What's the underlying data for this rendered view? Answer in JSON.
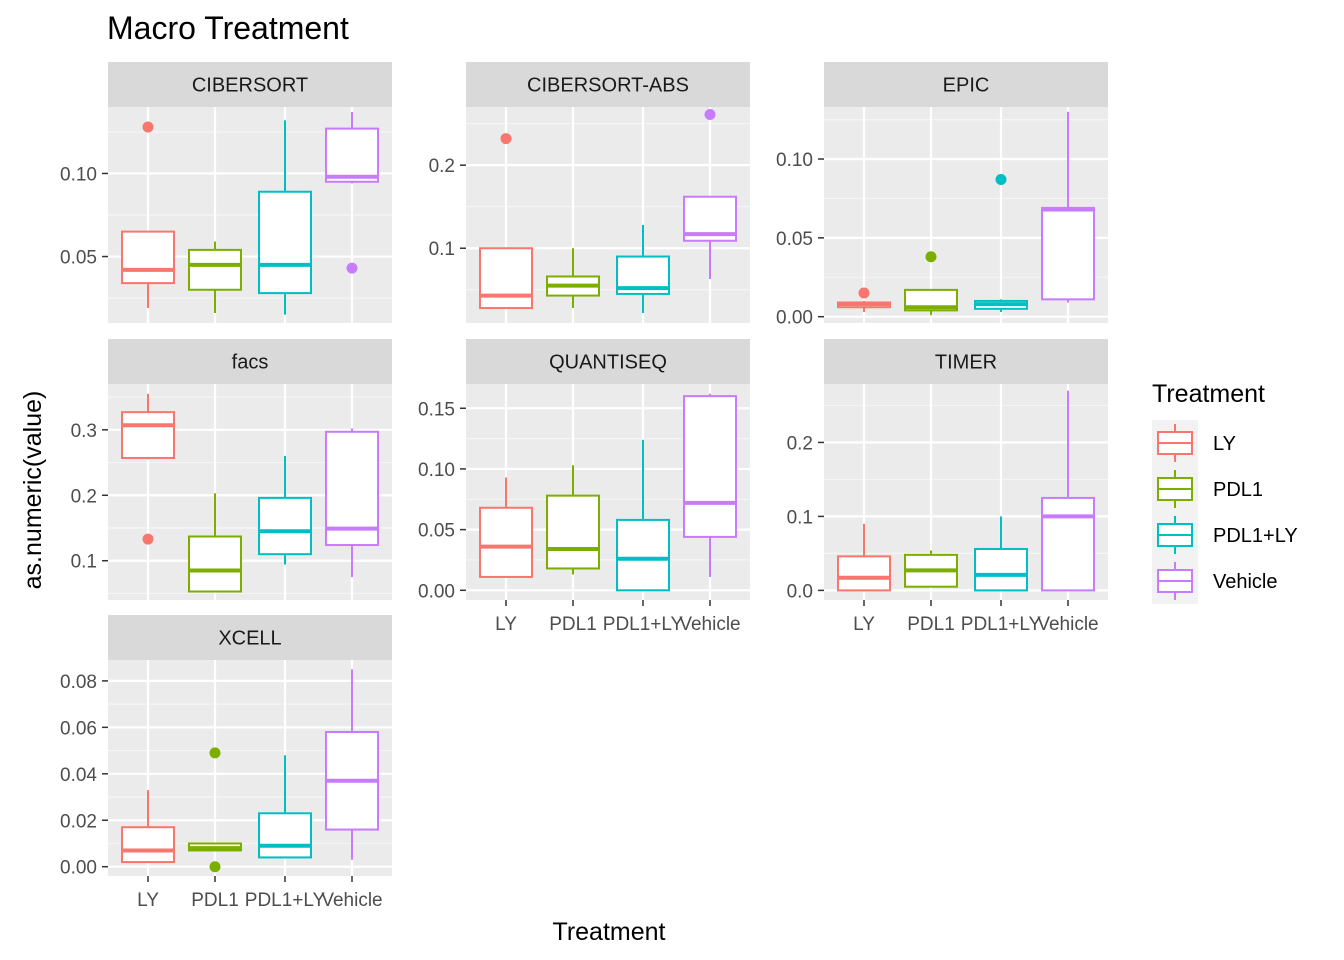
{
  "title": "Macro Treatment",
  "xlabel": "Treatment",
  "ylabel": "as.numeric(value)",
  "legend": {
    "title": "Treatment",
    "placement": "right",
    "items": [
      {
        "label": "LY",
        "color": "#F8766D"
      },
      {
        "label": "PDL1",
        "color": "#7CAE00"
      },
      {
        "label": "PDL1+LY",
        "color": "#00BFC4"
      },
      {
        "label": "Vehicle",
        "color": "#C77CFF"
      }
    ]
  },
  "chart_data": [
    {
      "type": "boxplot",
      "panel": "CIBERSORT",
      "categories": [
        "LY",
        "PDL1",
        "PDL1+LY",
        "Vehicle"
      ],
      "ylim": [
        0.01,
        0.14
      ],
      "yticks": [
        0.05,
        0.1
      ],
      "ytick_labels": [
        "0.05",
        "0.10"
      ],
      "boxes": [
        {
          "min": 0.019,
          "q1": 0.034,
          "median": 0.042,
          "q3": 0.065,
          "max": 0.065,
          "outliers": [
            0.128
          ]
        },
        {
          "min": 0.016,
          "q1": 0.03,
          "median": 0.045,
          "q3": 0.054,
          "max": 0.059,
          "outliers": []
        },
        {
          "min": 0.015,
          "q1": 0.028,
          "median": 0.045,
          "q3": 0.089,
          "max": 0.132,
          "outliers": []
        },
        {
          "min": 0.094,
          "q1": 0.095,
          "median": 0.098,
          "q3": 0.127,
          "max": 0.137,
          "outliers": [
            0.043
          ]
        }
      ]
    },
    {
      "type": "boxplot",
      "panel": "CIBERSORT-ABS",
      "categories": [
        "LY",
        "PDL1",
        "PDL1+LY",
        "Vehicle"
      ],
      "ylim": [
        0.01,
        0.27
      ],
      "yticks": [
        0.1,
        0.2
      ],
      "ytick_labels": [
        "0.1",
        "0.2"
      ],
      "boxes": [
        {
          "min": 0.028,
          "q1": 0.028,
          "median": 0.043,
          "q3": 0.1,
          "max": 0.1,
          "outliers": [
            0.232
          ]
        },
        {
          "min": 0.028,
          "q1": 0.043,
          "median": 0.055,
          "q3": 0.066,
          "max": 0.1,
          "outliers": []
        },
        {
          "min": 0.022,
          "q1": 0.045,
          "median": 0.052,
          "q3": 0.09,
          "max": 0.128,
          "outliers": []
        },
        {
          "min": 0.063,
          "q1": 0.109,
          "median": 0.117,
          "q3": 0.162,
          "max": 0.162,
          "outliers": [
            0.261
          ]
        }
      ]
    },
    {
      "type": "boxplot",
      "panel": "EPIC",
      "categories": [
        "LY",
        "PDL1",
        "PDL1+LY",
        "Vehicle"
      ],
      "ylim": [
        -0.004,
        0.133
      ],
      "yticks": [
        0.0,
        0.05,
        0.1
      ],
      "ytick_labels": [
        "0.00",
        "0.05",
        "0.10"
      ],
      "boxes": [
        {
          "min": 0.003,
          "q1": 0.006,
          "median": 0.008,
          "q3": 0.009,
          "max": 0.01,
          "outliers": [
            0.015
          ]
        },
        {
          "min": 0.001,
          "q1": 0.004,
          "median": 0.006,
          "q3": 0.017,
          "max": 0.017,
          "outliers": [
            0.038
          ]
        },
        {
          "min": 0.003,
          "q1": 0.005,
          "median": 0.008,
          "q3": 0.01,
          "max": 0.011,
          "outliers": [
            0.087
          ]
        },
        {
          "min": 0.009,
          "q1": 0.011,
          "median": 0.068,
          "q3": 0.069,
          "max": 0.13,
          "outliers": []
        }
      ]
    },
    {
      "type": "boxplot",
      "panel": "facs",
      "categories": [
        "LY",
        "PDL1",
        "PDL1+LY",
        "Vehicle"
      ],
      "ylim": [
        0.04,
        0.37
      ],
      "yticks": [
        0.1,
        0.2,
        0.3
      ],
      "ytick_labels": [
        "0.1",
        "0.2",
        "0.3"
      ],
      "boxes": [
        {
          "min": 0.255,
          "q1": 0.257,
          "median": 0.307,
          "q3": 0.327,
          "max": 0.355,
          "outliers": [
            0.133
          ]
        },
        {
          "min": 0.053,
          "q1": 0.053,
          "median": 0.085,
          "q3": 0.137,
          "max": 0.203,
          "outliers": []
        },
        {
          "min": 0.094,
          "q1": 0.11,
          "median": 0.145,
          "q3": 0.196,
          "max": 0.26,
          "outliers": []
        },
        {
          "min": 0.075,
          "q1": 0.124,
          "median": 0.149,
          "q3": 0.297,
          "max": 0.302,
          "outliers": []
        }
      ]
    },
    {
      "type": "boxplot",
      "panel": "QUANTISEQ",
      "categories": [
        "LY",
        "PDL1",
        "PDL1+LY",
        "Vehicle"
      ],
      "ylim": [
        -0.008,
        0.17
      ],
      "yticks": [
        0.0,
        0.05,
        0.1,
        0.15
      ],
      "ytick_labels": [
        "0.00",
        "0.05",
        "0.10",
        "0.15"
      ],
      "boxes": [
        {
          "min": 0.011,
          "q1": 0.011,
          "median": 0.036,
          "q3": 0.068,
          "max": 0.093,
          "outliers": []
        },
        {
          "min": 0.013,
          "q1": 0.018,
          "median": 0.034,
          "q3": 0.078,
          "max": 0.103,
          "outliers": []
        },
        {
          "min": 0.0,
          "q1": 0.0,
          "median": 0.026,
          "q3": 0.058,
          "max": 0.124,
          "outliers": []
        },
        {
          "min": 0.011,
          "q1": 0.044,
          "median": 0.072,
          "q3": 0.16,
          "max": 0.162,
          "outliers": []
        }
      ]
    },
    {
      "type": "boxplot",
      "panel": "TIMER",
      "categories": [
        "LY",
        "PDL1",
        "PDL1+LY",
        "Vehicle"
      ],
      "ylim": [
        -0.013,
        0.279
      ],
      "yticks": [
        0.0,
        0.1,
        0.2
      ],
      "ytick_labels": [
        "0.0",
        "0.1",
        "0.2"
      ],
      "boxes": [
        {
          "min": 0.0,
          "q1": 0.0,
          "median": 0.017,
          "q3": 0.046,
          "max": 0.09,
          "outliers": []
        },
        {
          "min": 0.005,
          "q1": 0.005,
          "median": 0.027,
          "q3": 0.048,
          "max": 0.054,
          "outliers": []
        },
        {
          "min": 0.0,
          "q1": 0.0,
          "median": 0.021,
          "q3": 0.056,
          "max": 0.1,
          "outliers": []
        },
        {
          "min": 0.0,
          "q1": 0.0,
          "median": 0.1,
          "q3": 0.125,
          "max": 0.27,
          "outliers": []
        }
      ]
    },
    {
      "type": "boxplot",
      "panel": "XCELL",
      "categories": [
        "LY",
        "PDL1",
        "PDL1+LY",
        "Vehicle"
      ],
      "ylim": [
        -0.004,
        0.089
      ],
      "yticks": [
        0.0,
        0.02,
        0.04,
        0.06,
        0.08
      ],
      "ytick_labels": [
        "0.00",
        "0.02",
        "0.04",
        "0.06",
        "0.08"
      ],
      "boxes": [
        {
          "min": 0.002,
          "q1": 0.002,
          "median": 0.007,
          "q3": 0.017,
          "max": 0.033,
          "outliers": []
        },
        {
          "min": 0.007,
          "q1": 0.007,
          "median": 0.008,
          "q3": 0.01,
          "max": 0.01,
          "outliers": [
            0.049,
            0.0
          ]
        },
        {
          "min": 0.004,
          "q1": 0.004,
          "median": 0.009,
          "q3": 0.023,
          "max": 0.048,
          "outliers": []
        },
        {
          "min": 0.003,
          "q1": 0.016,
          "median": 0.037,
          "q3": 0.058,
          "max": 0.085,
          "outliers": []
        }
      ]
    }
  ]
}
